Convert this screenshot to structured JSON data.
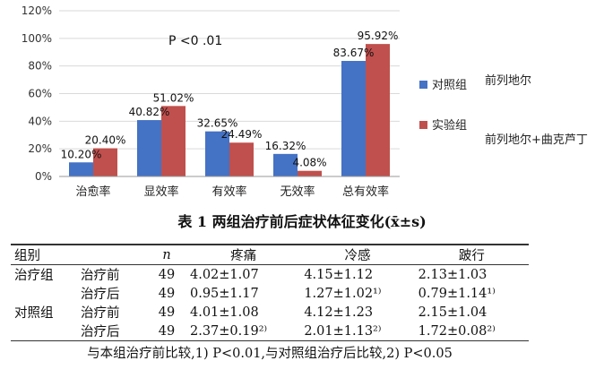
{
  "chart_data": {
    "type": "bar",
    "categories": [
      "治愈率",
      "显效率",
      "有效率",
      "无效率",
      "总有效率"
    ],
    "series": [
      {
        "name": "对照组",
        "values": [
          10.2,
          40.82,
          32.65,
          16.32,
          83.67
        ],
        "labels": [
          "10.20%",
          "40.82%",
          "32.65%",
          "16.32%",
          "83.67%"
        ],
        "color": "#4472c4"
      },
      {
        "name": "实验组",
        "values": [
          20.4,
          51.02,
          24.49,
          4.08,
          95.92
        ],
        "labels": [
          "20.40%",
          "51.02%",
          "24.49%",
          "4.08%",
          "95.92%"
        ],
        "color": "#c0504d"
      }
    ],
    "ylim": [
      0,
      120
    ],
    "yticks": [
      0,
      20,
      40,
      60,
      80,
      100,
      120
    ],
    "yticklabels": [
      "0%",
      "20%",
      "40%",
      "60%",
      "80%",
      "100%",
      "120%"
    ],
    "annotation": "P <0 .01",
    "legend_position": "right",
    "series_notes": [
      "前列地尔",
      "前列地尔+曲克芦丁"
    ]
  },
  "table": {
    "title": "表 1   两组治疗前后症状体征变化(x̄±s)",
    "headers": {
      "group": "组别",
      "n": "n",
      "cols": [
        "疼痛",
        "冷感",
        "跛行"
      ]
    },
    "rows": [
      {
        "group": "治疗组",
        "time": "治疗前",
        "n": "49",
        "vals": [
          "4.02±1.07",
          "4.15±1.12",
          "2.13±1.03"
        ]
      },
      {
        "group": "",
        "time": "治疗后",
        "n": "49",
        "vals": [
          "0.95±1.17",
          "1.27±1.02¹⁾",
          "0.79±1.14¹⁾"
        ]
      },
      {
        "group": "对照组",
        "time": "治疗前",
        "n": "49",
        "vals": [
          "4.01±1.08",
          "4.12±1.23",
          "2.15±1.04"
        ]
      },
      {
        "group": "",
        "time": "治疗后",
        "n": "49",
        "vals": [
          "2.37±0.19²⁾",
          "2.01±1.13²⁾",
          "1.72±0.08²⁾"
        ]
      }
    ],
    "note": "与本组治疗前比较,1) P<0.01,与对照组治疗后比较,2) P<0.05"
  }
}
